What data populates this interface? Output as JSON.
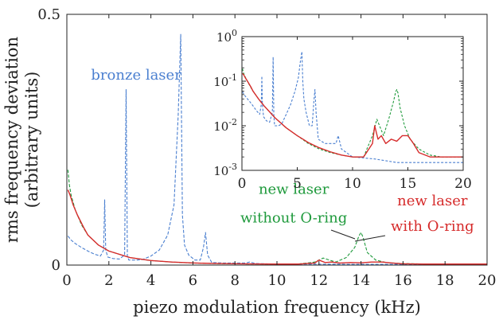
{
  "chart_data": [
    {
      "type": "line",
      "title": "",
      "xlabel": "piezo modulation frequency (kHz)",
      "ylabel_line1": "rms frequency deviation",
      "ylabel_line2": "(arbitrary units)",
      "xlim": [
        0,
        20
      ],
      "ylim": [
        0,
        0.5
      ],
      "x_ticks": [
        0,
        2,
        4,
        6,
        8,
        10,
        12,
        14,
        16,
        18,
        20
      ],
      "x_tick_labels": [
        "0",
        "2",
        "4",
        "6",
        "8",
        "10",
        "12",
        "14",
        "16",
        "18",
        "20"
      ],
      "y_tick_labels": [
        {
          "value": 0,
          "label": "0"
        },
        {
          "value": 0.5,
          "label": "0.5"
        }
      ],
      "grid": false,
      "annotations": [
        {
          "name": "bronze-laser-label",
          "text": "bronze laser",
          "x": 3.3,
          "y": 0.37,
          "color": "#4a7fd0"
        },
        {
          "name": "without-oring-label-1",
          "text": "new laser",
          "x": 10.8,
          "y": 0.142,
          "color": "#1f9a3c"
        },
        {
          "name": "without-oring-label-2",
          "text": "without O-ring",
          "x": 10.8,
          "y": 0.085,
          "color": "#1f9a3c"
        },
        {
          "name": "with-oring-label-1",
          "text": "new laser",
          "x": 17.4,
          "y": 0.119,
          "color": "#d62b2b"
        },
        {
          "name": "with-oring-label-2",
          "text": "with O-ring",
          "x": 17.4,
          "y": 0.068,
          "color": "#d62b2b"
        }
      ],
      "series": [
        {
          "color": "#4a7fd0",
          "style": "dashed",
          "x": [
            0.05,
            0.2,
            0.4,
            0.7,
            1.0,
            1.3,
            1.6,
            1.75,
            1.8,
            1.85,
            1.95,
            2.2,
            2.5,
            2.75,
            2.82,
            2.88,
            2.95,
            3.3,
            3.6,
            4.0,
            4.4,
            4.8,
            5.1,
            5.3,
            5.42,
            5.5,
            5.6,
            5.8,
            6.1,
            6.35,
            6.5,
            6.6,
            6.7,
            6.9,
            7.5,
            8.5,
            8.7,
            9.0,
            10.0,
            12.0,
            14.0,
            16.0,
            18.0,
            20.0
          ],
          "y": [
            0.058,
            0.05,
            0.043,
            0.035,
            0.028,
            0.022,
            0.018,
            0.03,
            0.13,
            0.03,
            0.016,
            0.013,
            0.012,
            0.02,
            0.35,
            0.018,
            0.01,
            0.01,
            0.011,
            0.018,
            0.03,
            0.06,
            0.12,
            0.3,
            0.46,
            0.1,
            0.04,
            0.02,
            0.01,
            0.01,
            0.035,
            0.065,
            0.02,
            0.005,
            0.004,
            0.004,
            0.006,
            0.003,
            0.002,
            0.0018,
            0.0015,
            0.0015,
            0.0015,
            0.0015
          ]
        },
        {
          "color": "#1f9a3c",
          "style": "dashed",
          "x": [
            0.05,
            0.12,
            0.2,
            0.4,
            0.7,
            1.0,
            1.5,
            2.0,
            3.0,
            4.0,
            5.0,
            6.0,
            7.0,
            8.0,
            9.0,
            10.0,
            11.0,
            11.8,
            12.2,
            12.8,
            13.3,
            13.7,
            13.9,
            14.0,
            14.1,
            14.3,
            14.7,
            15.2,
            16.0,
            17.0,
            18.0,
            19.0,
            20.0
          ],
          "y": [
            0.19,
            0.16,
            0.14,
            0.11,
            0.08,
            0.06,
            0.04,
            0.028,
            0.015,
            0.009,
            0.006,
            0.004,
            0.003,
            0.0025,
            0.0022,
            0.002,
            0.002,
            0.006,
            0.014,
            0.006,
            0.015,
            0.035,
            0.058,
            0.065,
            0.055,
            0.025,
            0.01,
            0.005,
            0.003,
            0.0022,
            0.002,
            0.002,
            0.002
          ]
        },
        {
          "color": "#d62b2b",
          "style": "solid",
          "x": [
            0.05,
            0.15,
            0.3,
            0.5,
            0.8,
            1.0,
            1.5,
            2.0,
            3.0,
            4.0,
            5.0,
            6.0,
            7.0,
            8.0,
            9.0,
            10.0,
            11.0,
            11.8,
            12.0,
            12.3,
            12.6,
            13.0,
            13.5,
            14.0,
            14.5,
            15.0,
            15.5,
            16.0,
            17.0,
            18.0,
            19.0,
            20.0
          ],
          "y": [
            0.15,
            0.14,
            0.12,
            0.1,
            0.075,
            0.06,
            0.04,
            0.028,
            0.015,
            0.009,
            0.006,
            0.0042,
            0.0032,
            0.0026,
            0.0022,
            0.002,
            0.002,
            0.004,
            0.01,
            0.005,
            0.006,
            0.004,
            0.005,
            0.0045,
            0.006,
            0.006,
            0.004,
            0.0025,
            0.002,
            0.002,
            0.002,
            0.002
          ]
        }
      ]
    },
    {
      "type": "line",
      "title": "",
      "xlabel": "",
      "ylabel": "",
      "xlim": [
        0,
        20
      ],
      "ylim": [
        0.001,
        1
      ],
      "yscale": "log",
      "x_ticks": [
        0,
        5,
        10,
        15,
        20
      ],
      "x_tick_labels": [
        "0",
        "5",
        "10",
        "15",
        "20"
      ],
      "y_tick_labels": [
        {
          "value": 0.001,
          "base": "10",
          "exp": "-3"
        },
        {
          "value": 0.01,
          "base": "10",
          "exp": "-2"
        },
        {
          "value": 0.1,
          "base": "10",
          "exp": "-1"
        },
        {
          "value": 1,
          "base": "10",
          "exp": "0"
        }
      ],
      "grid": false,
      "series": [
        {
          "color": "#4a7fd0",
          "style": "dashed",
          "x": [
            0.05,
            0.2,
            0.4,
            0.7,
            1.0,
            1.3,
            1.6,
            1.75,
            1.8,
            1.85,
            1.95,
            2.2,
            2.5,
            2.75,
            2.82,
            2.88,
            2.95,
            3.3,
            3.6,
            4.0,
            4.4,
            4.8,
            5.1,
            5.3,
            5.42,
            5.5,
            5.6,
            5.8,
            6.1,
            6.35,
            6.5,
            6.6,
            6.7,
            6.9,
            7.5,
            8.5,
            8.7,
            9.0,
            10.0,
            12.0,
            14.0,
            16.0,
            18.0,
            20.0
          ],
          "y": [
            0.058,
            0.05,
            0.043,
            0.035,
            0.028,
            0.022,
            0.018,
            0.03,
            0.13,
            0.03,
            0.016,
            0.013,
            0.012,
            0.02,
            0.35,
            0.018,
            0.01,
            0.01,
            0.011,
            0.018,
            0.03,
            0.06,
            0.12,
            0.3,
            0.46,
            0.1,
            0.04,
            0.02,
            0.01,
            0.01,
            0.035,
            0.065,
            0.02,
            0.005,
            0.004,
            0.004,
            0.006,
            0.003,
            0.002,
            0.0018,
            0.0015,
            0.0015,
            0.0015,
            0.0015
          ]
        },
        {
          "color": "#1f9a3c",
          "style": "dashed",
          "x": [
            0.05,
            0.12,
            0.2,
            0.4,
            0.7,
            1.0,
            1.5,
            2.0,
            3.0,
            4.0,
            5.0,
            6.0,
            7.0,
            8.0,
            9.0,
            10.0,
            11.0,
            11.8,
            12.2,
            12.8,
            13.3,
            13.7,
            13.9,
            14.0,
            14.1,
            14.3,
            14.7,
            15.2,
            16.0,
            17.0,
            18.0,
            19.0,
            20.0
          ],
          "y": [
            0.19,
            0.16,
            0.14,
            0.11,
            0.08,
            0.06,
            0.04,
            0.028,
            0.015,
            0.009,
            0.006,
            0.004,
            0.003,
            0.0025,
            0.0022,
            0.002,
            0.002,
            0.006,
            0.014,
            0.006,
            0.015,
            0.035,
            0.058,
            0.065,
            0.055,
            0.025,
            0.01,
            0.005,
            0.003,
            0.0022,
            0.002,
            0.002,
            0.002
          ]
        },
        {
          "color": "#d62b2b",
          "style": "solid",
          "x": [
            0.05,
            0.15,
            0.3,
            0.5,
            0.8,
            1.0,
            1.5,
            2.0,
            3.0,
            4.0,
            5.0,
            6.0,
            7.0,
            8.0,
            9.0,
            10.0,
            11.0,
            11.8,
            12.0,
            12.3,
            12.6,
            13.0,
            13.5,
            14.0,
            14.5,
            15.0,
            15.5,
            16.0,
            17.0,
            18.0,
            19.0,
            20.0
          ],
          "y": [
            0.15,
            0.14,
            0.12,
            0.1,
            0.075,
            0.06,
            0.04,
            0.028,
            0.015,
            0.009,
            0.006,
            0.0042,
            0.0032,
            0.0026,
            0.0022,
            0.002,
            0.002,
            0.004,
            0.01,
            0.005,
            0.006,
            0.004,
            0.005,
            0.0045,
            0.006,
            0.006,
            0.004,
            0.0025,
            0.002,
            0.002,
            0.002,
            0.002
          ]
        }
      ]
    }
  ]
}
